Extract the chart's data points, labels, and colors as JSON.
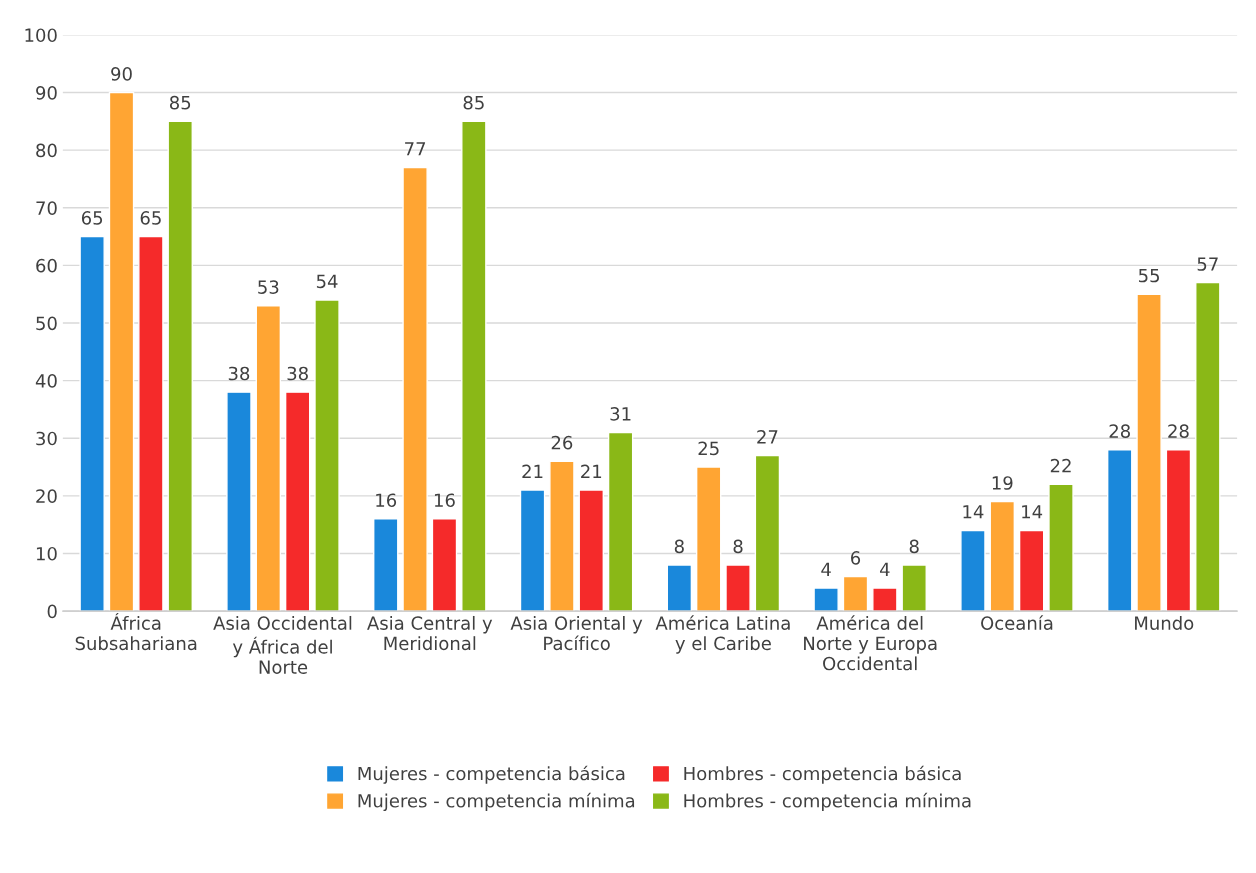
{
  "chart_data": {
    "type": "bar",
    "categories": [
      "África Subsahariana",
      "Asia Occidental y África del Norte",
      "Asia Central y Meridional",
      "Asia Oriental y Pacífico",
      "América Latina y el Caribe",
      "América del Norte y Europa Occidental",
      "Oceanía",
      "Mundo"
    ],
    "series": [
      {
        "name": "Mujeres - competencia básica",
        "color": "#1a88db",
        "values": [
          65,
          38,
          16,
          21,
          8,
          4,
          14,
          28
        ]
      },
      {
        "name": "Mujeres - competencia mínima",
        "color": "#ffa533",
        "values": [
          90,
          53,
          77,
          26,
          25,
          6,
          19,
          55
        ]
      },
      {
        "name": "Hombres - competencia básica",
        "color": "#f52a2a",
        "values": [
          65,
          38,
          16,
          21,
          8,
          4,
          14,
          28
        ]
      },
      {
        "name": "Hombres - competencia mínima",
        "color": "#8ab817",
        "values": [
          85,
          54,
          85,
          31,
          27,
          8,
          22,
          57
        ]
      }
    ],
    "ylim": [
      0,
      100
    ],
    "yticks": [
      0,
      10,
      20,
      30,
      40,
      50,
      60,
      70,
      80,
      90,
      100
    ],
    "grid": "y",
    "legend": "bottom",
    "data_labels": true
  }
}
